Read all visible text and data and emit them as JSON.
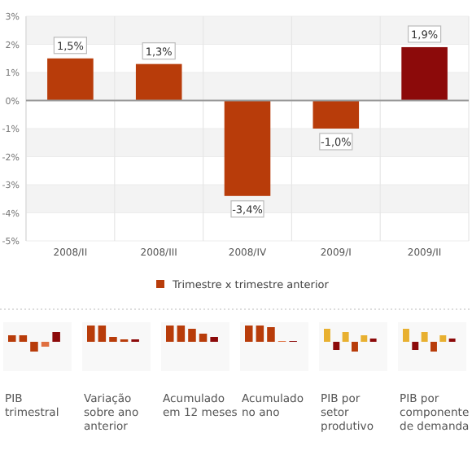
{
  "chart_data": {
    "type": "bar",
    "categories": [
      "2008/II",
      "2008/III",
      "2008/IV",
      "2009/I",
      "2009/II"
    ],
    "series": [
      {
        "name": "Trimestre x trimestre anterior",
        "color": "#b83c0a",
        "colors": [
          "#b83c0a",
          "#b83c0a",
          "#b83c0a",
          "#b83c0a",
          "#8c0a0a"
        ],
        "values": [
          1.5,
          1.3,
          -3.4,
          -1.0,
          1.9
        ],
        "value_labels": [
          "1,5%",
          "1,3%",
          "-3,4%",
          "-1,0%",
          "1,9%"
        ]
      }
    ],
    "ylim": [
      -5,
      3
    ],
    "yticks": [
      {
        "value": 3,
        "label": "3%"
      },
      {
        "value": 2,
        "label": "2%"
      },
      {
        "value": 1,
        "label": "1%"
      },
      {
        "value": 0,
        "label": "0%"
      },
      {
        "value": -1,
        "label": "-1%"
      },
      {
        "value": -2,
        "label": "-2%"
      },
      {
        "value": -3,
        "label": "-3%"
      },
      {
        "value": -4,
        "label": "-4%"
      },
      {
        "value": -5,
        "label": "-5%"
      }
    ],
    "grid": true,
    "legend": "bottom",
    "annotations": [
      "PIB trimestral",
      "Variação sobre ano anterior",
      "Acumulado em 12 meses",
      "Acumulado no ano",
      "PIB por setor produtivo",
      "PIB por componente de demanda"
    ]
  }
}
